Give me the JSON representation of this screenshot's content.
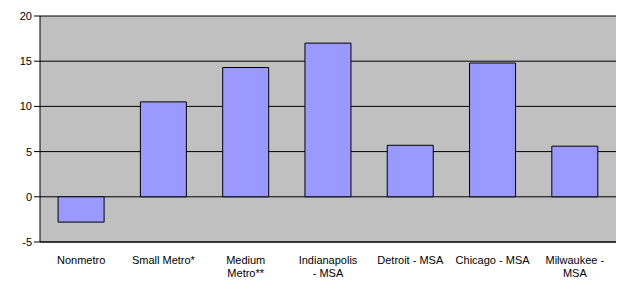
{
  "chart_data": {
    "type": "bar",
    "categories": [
      "Nonmetro",
      "Small Metro*",
      "Medium Metro**",
      "Indianapolis - MSA",
      "Detroit - MSA",
      "Chicago - MSA",
      "Milwaukee - MSA"
    ],
    "values": [
      -2.8,
      10.5,
      14.3,
      17,
      5.7,
      14.8,
      5.6
    ],
    "color": "#9999ff",
    "ylim": [
      -5,
      20
    ],
    "yticks": [
      -5,
      0,
      5,
      10,
      15,
      20
    ],
    "grid": true
  }
}
